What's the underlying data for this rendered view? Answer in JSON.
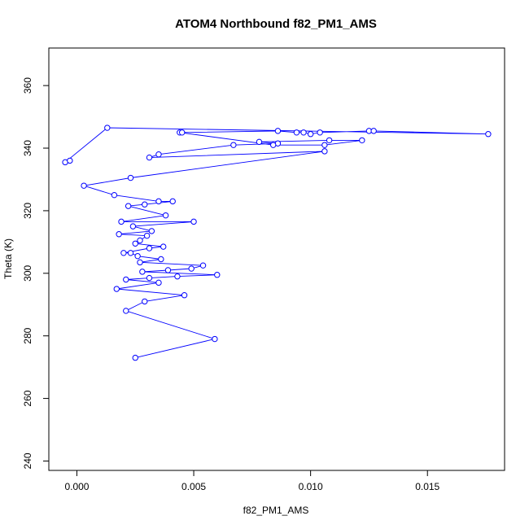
{
  "chart_data": {
    "type": "line",
    "title": "ATOM4 Northbound f82_PM1_AMS",
    "xlabel": "f82_PM1_AMS",
    "ylabel": "Theta (K)",
    "xlim": [
      -0.0012,
      0.0183
    ],
    "ylim": [
      237,
      372
    ],
    "x_ticks": [
      0.0,
      0.005,
      0.01,
      0.015
    ],
    "x_tick_labels": [
      "0.000",
      "0.005",
      "0.010",
      "0.015"
    ],
    "y_ticks": [
      240,
      260,
      280,
      300,
      320,
      340,
      360
    ],
    "y_tick_labels": [
      "240",
      "260",
      "280",
      "300",
      "320",
      "340",
      "360"
    ],
    "grid": false,
    "series_color": "#0000ff",
    "marker": "open-circle",
    "series": [
      {
        "name": "",
        "points": [
          [
            0.0025,
            273.0
          ],
          [
            0.0059,
            279.0
          ],
          [
            0.0021,
            288.0
          ],
          [
            0.0029,
            291.0
          ],
          [
            0.0046,
            293.0
          ],
          [
            0.0017,
            295.0
          ],
          [
            0.0035,
            297.0
          ],
          [
            0.0021,
            298.0
          ],
          [
            0.0031,
            298.5
          ],
          [
            0.0043,
            299.0
          ],
          [
            0.006,
            299.5
          ],
          [
            0.0028,
            300.5
          ],
          [
            0.0039,
            301.0
          ],
          [
            0.0049,
            301.5
          ],
          [
            0.0054,
            302.5
          ],
          [
            0.0027,
            303.5
          ],
          [
            0.0036,
            304.5
          ],
          [
            0.0026,
            305.5
          ],
          [
            0.0023,
            306.5
          ],
          [
            0.002,
            306.5
          ],
          [
            0.0031,
            308.0
          ],
          [
            0.0037,
            308.5
          ],
          [
            0.0025,
            309.5
          ],
          [
            0.0027,
            310.5
          ],
          [
            0.003,
            312.0
          ],
          [
            0.0018,
            312.5
          ],
          [
            0.0032,
            313.5
          ],
          [
            0.0024,
            315.0
          ],
          [
            0.005,
            316.5
          ],
          [
            0.0019,
            316.5
          ],
          [
            0.0038,
            318.5
          ],
          [
            0.0022,
            321.5
          ],
          [
            0.0029,
            322.0
          ],
          [
            0.0041,
            323.0
          ],
          [
            0.0035,
            323.0
          ],
          [
            0.0016,
            325.0
          ],
          [
            0.0003,
            328.0
          ],
          [
            0.0023,
            330.5
          ],
          [
            0.0106,
            339.0
          ],
          [
            0.0031,
            337.0
          ],
          [
            0.0035,
            338.0
          ],
          [
            0.0067,
            341.0
          ],
          [
            0.0086,
            341.5
          ],
          [
            0.0078,
            342.0
          ],
          [
            0.0108,
            342.5
          ],
          [
            0.0122,
            342.5
          ],
          [
            0.0106,
            341.0
          ],
          [
            0.0084,
            341.0
          ],
          [
            0.0044,
            345.0
          ],
          [
            0.0045,
            345.0
          ],
          [
            0.0086,
            345.5
          ],
          [
            0.0094,
            345.0
          ],
          [
            0.0097,
            345.0
          ],
          [
            0.01,
            344.5
          ],
          [
            0.0104,
            345.0
          ],
          [
            0.0125,
            345.5
          ],
          [
            0.0127,
            345.5
          ],
          [
            0.0176,
            344.5
          ],
          [
            0.0013,
            346.5
          ],
          [
            -0.0005,
            335.5
          ],
          [
            -0.0003,
            336.0
          ]
        ]
      }
    ]
  }
}
